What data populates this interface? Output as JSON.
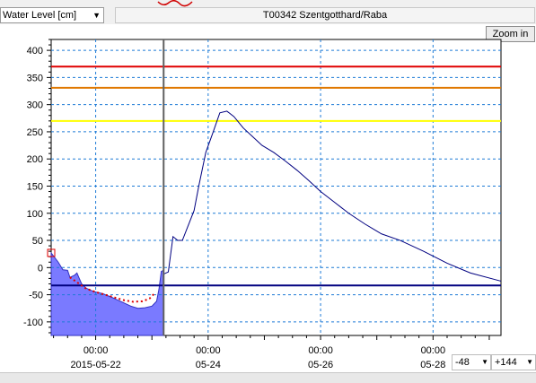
{
  "toolbar": {
    "parameter_select": "Water Level [cm]",
    "station_title": "T00342 Szentgotthard/Raba",
    "zoom_button": "Zoom in"
  },
  "bottom_controls": {
    "range_back": "-48",
    "range_forward": "+144"
  },
  "chart_data": {
    "type": "line",
    "title": "",
    "xlabel": "",
    "ylabel": "",
    "x_unit": "hours from 2015-05-22 00:00",
    "x_tick_labels": [
      {
        "x": 0,
        "time": "00:00",
        "date": "2015-05-22"
      },
      {
        "x": 48,
        "time": "00:00",
        "date": "05-24"
      },
      {
        "x": 96,
        "time": "00:00",
        "date": "05-26"
      },
      {
        "x": 144,
        "time": "00:00",
        "date": "05-28"
      }
    ],
    "xlim": [
      -19,
      173
    ],
    "ylim": [
      -125,
      420
    ],
    "y_ticks": [
      400,
      350,
      300,
      250,
      200,
      150,
      100,
      50,
      0,
      -50,
      -100
    ],
    "grid": true,
    "now_line_x": 29,
    "threshold_lines": [
      {
        "value": 370,
        "color": "#e00000"
      },
      {
        "value": 331,
        "color": "#e07800"
      },
      {
        "value": 270,
        "color": "#ffff00"
      },
      {
        "value": -33,
        "color": "#000080"
      }
    ],
    "series": [
      {
        "style": "observed-area",
        "color": "#7a7aff",
        "points": [
          [
            -19,
            27
          ],
          [
            -16,
            10
          ],
          [
            -14,
            -4
          ],
          [
            -12,
            -5
          ],
          [
            -11,
            -18
          ],
          [
            -9,
            -14
          ],
          [
            -8,
            -10
          ],
          [
            -7,
            -20
          ],
          [
            -6,
            -30
          ],
          [
            -4,
            -38
          ],
          [
            -1,
            -44
          ],
          [
            3,
            -48
          ],
          [
            7,
            -55
          ],
          [
            11,
            -63
          ],
          [
            15,
            -71
          ],
          [
            18,
            -75
          ],
          [
            21,
            -74
          ],
          [
            24,
            -71
          ],
          [
            26,
            -62
          ],
          [
            27,
            -40
          ],
          [
            28,
            -7
          ],
          [
            29,
            -5
          ]
        ]
      },
      {
        "style": "observed-dotted",
        "color": "#e00000",
        "points": [
          [
            -11,
            -18
          ],
          [
            -7,
            -30
          ],
          [
            -4,
            -39
          ],
          [
            0,
            -45
          ],
          [
            4,
            -50
          ],
          [
            8,
            -55
          ],
          [
            12,
            -60
          ],
          [
            16,
            -63
          ],
          [
            20,
            -62
          ],
          [
            23,
            -57
          ],
          [
            25,
            -48
          ]
        ]
      },
      {
        "style": "forecast",
        "color": "#000080",
        "points": [
          [
            29,
            -12
          ],
          [
            31,
            -8
          ],
          [
            33,
            57
          ],
          [
            35,
            50
          ],
          [
            37,
            50
          ],
          [
            40,
            83
          ],
          [
            42,
            105
          ],
          [
            44,
            150
          ],
          [
            47,
            212
          ],
          [
            50,
            248
          ],
          [
            53,
            285
          ],
          [
            56,
            288
          ],
          [
            59,
            278
          ],
          [
            63,
            257
          ],
          [
            67,
            241
          ],
          [
            71,
            225
          ],
          [
            76,
            212
          ],
          [
            81,
            196
          ],
          [
            86,
            179
          ],
          [
            91,
            160
          ],
          [
            96,
            140
          ],
          [
            102,
            120
          ],
          [
            108,
            100
          ],
          [
            115,
            80
          ],
          [
            122,
            62
          ],
          [
            130,
            50
          ],
          [
            140,
            30
          ],
          [
            150,
            8
          ],
          [
            160,
            -10
          ],
          [
            173,
            -25
          ]
        ]
      }
    ],
    "start_marker": {
      "x": -19,
      "y": 27,
      "color": "#e00000"
    }
  }
}
